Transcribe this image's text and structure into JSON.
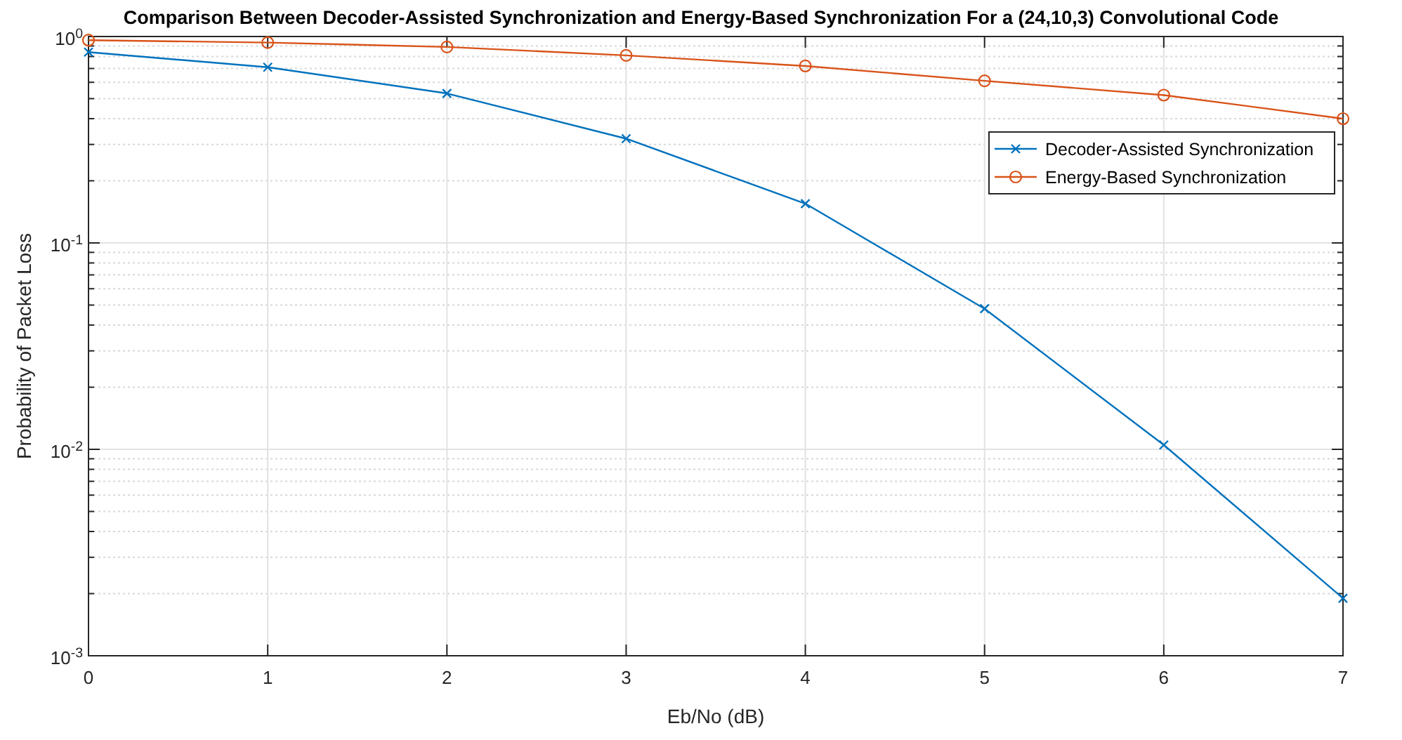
{
  "chart_data": {
    "type": "line",
    "title": "Comparison Between Decoder-Assisted Synchronization and Energy-Based Synchronization For a (24,10,3) Convolutional Code",
    "xlabel": "Eb/No (dB)",
    "ylabel": "Probability of Packet Loss",
    "x": [
      0,
      1,
      2,
      3,
      4,
      5,
      6,
      7
    ],
    "series": [
      {
        "name": "Decoder-Assisted Synchronization",
        "color": "#0072bd",
        "marker": "cross",
        "values": [
          0.84,
          0.71,
          0.53,
          0.32,
          0.155,
          0.048,
          0.0105,
          0.0019
        ]
      },
      {
        "name": "Energy-Based Synchronization",
        "color": "#d95319",
        "marker": "circle",
        "values": [
          0.96,
          0.935,
          0.89,
          0.81,
          0.72,
          0.61,
          0.52,
          0.4
        ]
      }
    ],
    "log": "y",
    "xlim": [
      0,
      7
    ],
    "xticks": [
      0,
      1,
      2,
      3,
      4,
      5,
      6,
      7
    ],
    "ylim": [
      0.001,
      1
    ],
    "yticks": [
      {
        "value": 1,
        "label": "10$^{0}$"
      },
      {
        "value": 0.1,
        "label": "10$^{-1}$"
      },
      {
        "value": 0.01,
        "label": "10$^{-2}$"
      },
      {
        "value": 0.001,
        "label": "10$^{-3}$"
      }
    ],
    "grid": true,
    "legend": "top right",
    "line_style": "solid"
  }
}
